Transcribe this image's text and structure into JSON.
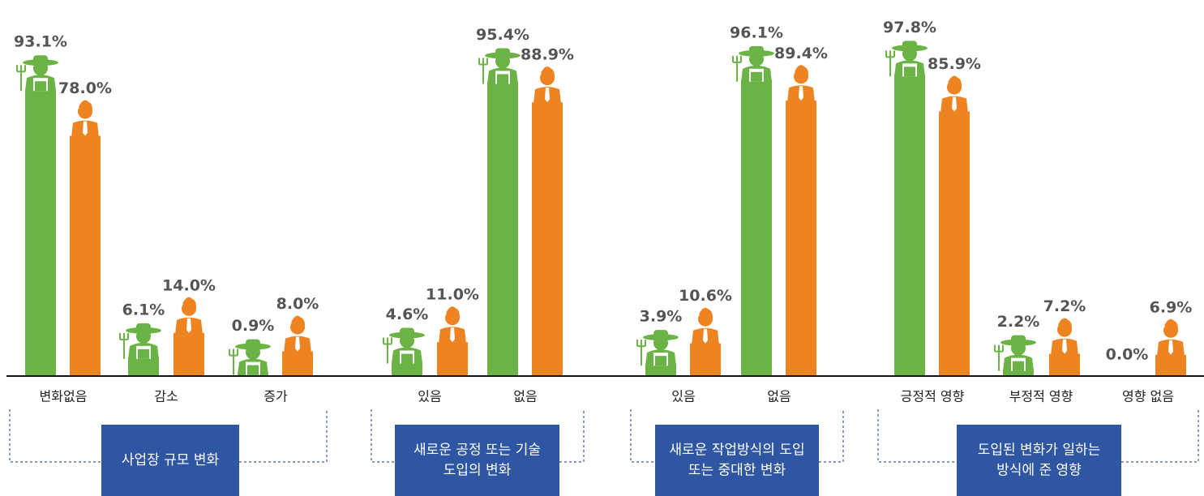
{
  "chart_data": {
    "type": "bar",
    "categories": [
      "변화없음",
      "감소",
      "증가",
      "있음",
      "없음",
      "있음",
      "없음",
      "긍정적 영향",
      "부정적 영향",
      "영향 없음"
    ],
    "series": [
      {
        "color": "#6ab344",
        "values": [
          93.1,
          6.1,
          0.9,
          4.6,
          95.4,
          3.9,
          96.1,
          97.8,
          2.2,
          0.0
        ],
        "value_labels": [
          "93.1%",
          "6.1%",
          "0.9%",
          "4.6%",
          "95.4%",
          "3.9%",
          "96.1%",
          "97.8%",
          "2.2%",
          "0.0%"
        ]
      },
      {
        "color": "#ee8421",
        "values": [
          78.0,
          14.0,
          8.0,
          11.0,
          88.9,
          10.6,
          89.4,
          85.9,
          7.2,
          6.9
        ],
        "value_labels": [
          "78.0%",
          "14.0%",
          "8.0%",
          "11.0%",
          "88.9%",
          "10.6%",
          "89.4%",
          "85.9%",
          "7.2%",
          "6.9%"
        ]
      }
    ],
    "ylim": [
      0,
      100
    ],
    "groups": [
      {
        "lines": [
          "사업장 규모 변화"
        ]
      },
      {
        "lines": [
          "새로운 공정 또는 기술",
          "도입의 변화"
        ]
      },
      {
        "lines": [
          "새로운 작업방식의 도입",
          "또는 중대한 변화"
        ]
      },
      {
        "lines": [
          "도입된 변화가 일하는",
          "방식에 준 영향"
        ]
      }
    ]
  }
}
